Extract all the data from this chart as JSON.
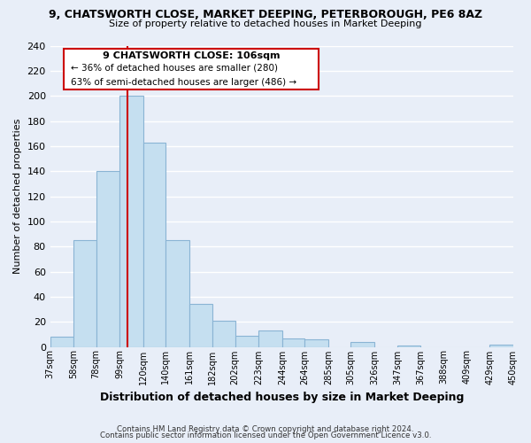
{
  "title": "9, CHATSWORTH CLOSE, MARKET DEEPING, PETERBOROUGH, PE6 8AZ",
  "subtitle": "Size of property relative to detached houses in Market Deeping",
  "xlabel": "Distribution of detached houses by size in Market Deeping",
  "ylabel": "Number of detached properties",
  "bin_edges": [
    37,
    58,
    78,
    99,
    120,
    140,
    161,
    182,
    202,
    223,
    244,
    264,
    285,
    305,
    326,
    347,
    367,
    388,
    409,
    429,
    450
  ],
  "bar_heights": [
    8,
    85,
    140,
    200,
    163,
    85,
    34,
    21,
    9,
    13,
    7,
    6,
    0,
    4,
    0,
    1,
    0,
    0,
    0,
    2
  ],
  "bar_color": "#c5dff0",
  "bar_edge_color": "#8ab4d4",
  "background_color": "#e8eef8",
  "grid_color": "#ffffff",
  "vline_x": 106,
  "vline_color": "#cc0000",
  "annotation_title": "9 CHATSWORTH CLOSE: 106sqm",
  "annotation_line1": "← 36% of detached houses are smaller (280)",
  "annotation_line2": "63% of semi-detached houses are larger (486) →",
  "annotation_box_color": "#ffffff",
  "annotation_box_edge": "#cc0000",
  "ylim": [
    0,
    240
  ],
  "yticks": [
    0,
    20,
    40,
    60,
    80,
    100,
    120,
    140,
    160,
    180,
    200,
    220,
    240
  ],
  "tick_labels": [
    "37sqm",
    "58sqm",
    "78sqm",
    "99sqm",
    "120sqm",
    "140sqm",
    "161sqm",
    "182sqm",
    "202sqm",
    "223sqm",
    "244sqm",
    "264sqm",
    "285sqm",
    "305sqm",
    "326sqm",
    "347sqm",
    "367sqm",
    "388sqm",
    "409sqm",
    "429sqm",
    "450sqm"
  ],
  "footer1": "Contains HM Land Registry data © Crown copyright and database right 2024.",
  "footer2": "Contains public sector information licensed under the Open Government Licence v3.0."
}
